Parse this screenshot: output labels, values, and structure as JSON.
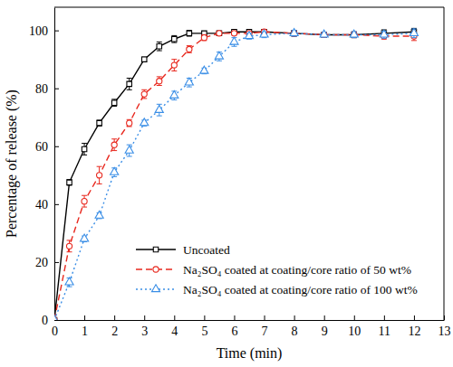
{
  "chart_data": {
    "type": "line",
    "x_label": "Time (min)",
    "y_label": "Percentage of release (%)",
    "x": [
      0,
      0.5,
      1,
      1.5,
      2,
      2.5,
      3,
      3.5,
      4,
      4.5,
      5,
      5.5,
      6,
      6.5,
      7,
      8,
      9,
      10,
      11,
      12
    ],
    "series": [
      {
        "name": "Uncoated",
        "color": "#000000",
        "marker": "square",
        "line_style": "solid",
        "values": [
          0,
          47.5,
          59,
          68,
          75,
          81.5,
          90,
          94.5,
          97,
          99,
          99,
          99,
          99.5,
          99.5,
          99.5,
          99,
          98.5,
          98.5,
          99,
          99.5
        ],
        "errors": [
          0,
          1,
          2,
          1,
          1.2,
          2,
          0.8,
          1.5,
          1.2,
          1,
          0.6,
          0.6,
          0.6,
          0.6,
          0.6,
          1,
          0.8,
          1,
          1.2,
          1.2
        ]
      },
      {
        "name": "Na₂SO₄ coated at coating/core ratio of 50 wt%",
        "color": "#e8281e",
        "marker": "circle",
        "line_style": "dashed",
        "values": [
          0,
          25.5,
          41,
          50,
          60.5,
          68,
          78,
          82.5,
          88,
          93.5,
          97.5,
          99,
          99,
          99,
          99.5,
          99,
          98.5,
          98.5,
          98,
          98
        ],
        "errors": [
          0,
          2,
          2,
          3,
          2,
          1.2,
          1.5,
          1.5,
          2,
          1.2,
          1,
          0.6,
          0.6,
          0.6,
          0.6,
          1,
          0.8,
          1,
          1,
          1.5
        ]
      },
      {
        "name": "Na₂SO₄ coated at coating/core ratio of 100 wt%",
        "color": "#3a8ee6",
        "marker": "triangle",
        "line_style": "dotted",
        "values": [
          0,
          13,
          28,
          36,
          51,
          58.5,
          68,
          72.5,
          77.5,
          82,
          86,
          91,
          96,
          98,
          98.5,
          99,
          98.5,
          98.5,
          98.5,
          99
        ],
        "errors": [
          0,
          1.5,
          1,
          1,
          1.5,
          2,
          1,
          2,
          1.5,
          1.5,
          1,
          1.5,
          1.5,
          1,
          1,
          1,
          0.8,
          1,
          1.2,
          1.5
        ]
      }
    ],
    "xlim": [
      0,
      13
    ],
    "xticks": [
      0,
      1,
      2,
      3,
      4,
      5,
      6,
      7,
      8,
      9,
      10,
      11,
      12,
      13
    ],
    "ylim": [
      0,
      108
    ],
    "yticks": [
      0,
      20,
      40,
      60,
      80,
      100
    ],
    "grid": false,
    "legend": "lower right"
  }
}
